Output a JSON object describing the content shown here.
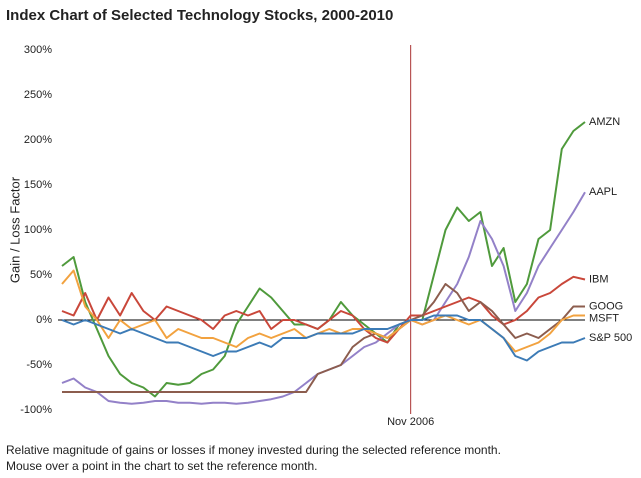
{
  "chart_data": {
    "type": "line",
    "title": "Index Chart of Selected Technology Stocks, 2000-2010",
    "y_label": "Gain / Loss Factor",
    "notes": [
      "Relative magnitude of gains or losses if money invested during the selected reference month.",
      "Mouse over a point in the chart to set the reference month."
    ],
    "categories": [
      null,
      null,
      null,
      null,
      null,
      null,
      null,
      null,
      null,
      null,
      null,
      null,
      null,
      null,
      null,
      null,
      null,
      null,
      null,
      null,
      null,
      null,
      null,
      null,
      null,
      null,
      null,
      null,
      null,
      null,
      "Nov 2006",
      null,
      null,
      null,
      null,
      null,
      null,
      null,
      null,
      null,
      null,
      null,
      null,
      null,
      null,
      null
    ],
    "ylim": [
      -100,
      300
    ],
    "yticks": [
      {
        "value": -100,
        "label": "-100%"
      },
      {
        "value": -50,
        "label": "-50%"
      },
      {
        "value": 0,
        "label": "0%"
      },
      {
        "value": 50,
        "label": "50%"
      },
      {
        "value": 100,
        "label": "100%"
      },
      {
        "value": 150,
        "label": "150%"
      },
      {
        "value": 200,
        "label": "200%"
      },
      {
        "value": 250,
        "label": "250%"
      },
      {
        "value": 300,
        "label": "300%"
      }
    ],
    "series": [
      {
        "name": "AMZN",
        "color": "#4f9a3c",
        "values": [
          60,
          70,
          20,
          -10,
          -40,
          -60,
          -70,
          -75,
          -85,
          -70,
          -72,
          -70,
          -60,
          -55,
          -40,
          -5,
          15,
          35,
          25,
          10,
          -5,
          -5,
          -10,
          0,
          20,
          5,
          -5,
          -15,
          -25,
          -5,
          0,
          0,
          50,
          100,
          125,
          110,
          120,
          60,
          80,
          20,
          40,
          90,
          100,
          190,
          210,
          220
        ]
      },
      {
        "name": "AAPL",
        "color": "#9381c8",
        "values": [
          -70,
          -65,
          -75,
          -80,
          -90,
          -92,
          -93,
          -92,
          -90,
          -90,
          -92,
          -92,
          -93,
          -92,
          -92,
          -93,
          -92,
          -90,
          -88,
          -85,
          -80,
          -70,
          -60,
          -55,
          -50,
          -40,
          -30,
          -25,
          -15,
          -5,
          0,
          -5,
          0,
          20,
          40,
          70,
          110,
          90,
          60,
          10,
          30,
          60,
          80,
          100,
          120,
          142
        ]
      },
      {
        "name": "IBM",
        "color": "#c9473a",
        "values": [
          10,
          5,
          30,
          0,
          25,
          5,
          30,
          10,
          0,
          15,
          10,
          5,
          0,
          -10,
          5,
          10,
          5,
          10,
          -10,
          0,
          0,
          -5,
          -10,
          0,
          10,
          5,
          -10,
          -20,
          -25,
          -10,
          5,
          5,
          10,
          15,
          20,
          25,
          20,
          5,
          -5,
          0,
          10,
          25,
          30,
          40,
          48,
          45
        ]
      },
      {
        "name": "GOOG",
        "color": "#8c5d4e",
        "values": [
          -80,
          -80,
          -80,
          -80,
          -80,
          -80,
          -80,
          -80,
          -80,
          -80,
          -80,
          -80,
          -80,
          -80,
          -80,
          -80,
          -80,
          -80,
          -80,
          -80,
          -80,
          -80,
          -60,
          -55,
          -50,
          -30,
          -20,
          -15,
          -20,
          -10,
          0,
          5,
          20,
          40,
          30,
          10,
          20,
          10,
          -5,
          -20,
          -15,
          -20,
          -10,
          0,
          15,
          15
        ]
      },
      {
        "name": "MSFT",
        "color": "#f2a23f",
        "values": [
          40,
          55,
          15,
          0,
          -20,
          0,
          -10,
          -5,
          0,
          -20,
          -10,
          -15,
          -20,
          -20,
          -25,
          -30,
          -20,
          -15,
          -20,
          -15,
          -10,
          -20,
          -15,
          -10,
          -15,
          -10,
          -10,
          -15,
          -20,
          -10,
          0,
          -5,
          0,
          5,
          0,
          -5,
          0,
          -10,
          -20,
          -35,
          -30,
          -25,
          -15,
          0,
          5,
          5
        ]
      },
      {
        "name": "S&P 500",
        "color": "#3c7bb6",
        "values": [
          0,
          -5,
          0,
          -5,
          -10,
          -15,
          -10,
          -15,
          -20,
          -25,
          -25,
          -30,
          -35,
          -40,
          -35,
          -35,
          -30,
          -25,
          -30,
          -20,
          -20,
          -20,
          -15,
          -15,
          -15,
          -15,
          -10,
          -10,
          -10,
          -5,
          0,
          0,
          5,
          5,
          5,
          0,
          0,
          -10,
          -20,
          -40,
          -45,
          -35,
          -30,
          -25,
          -25,
          -20
        ]
      }
    ]
  }
}
